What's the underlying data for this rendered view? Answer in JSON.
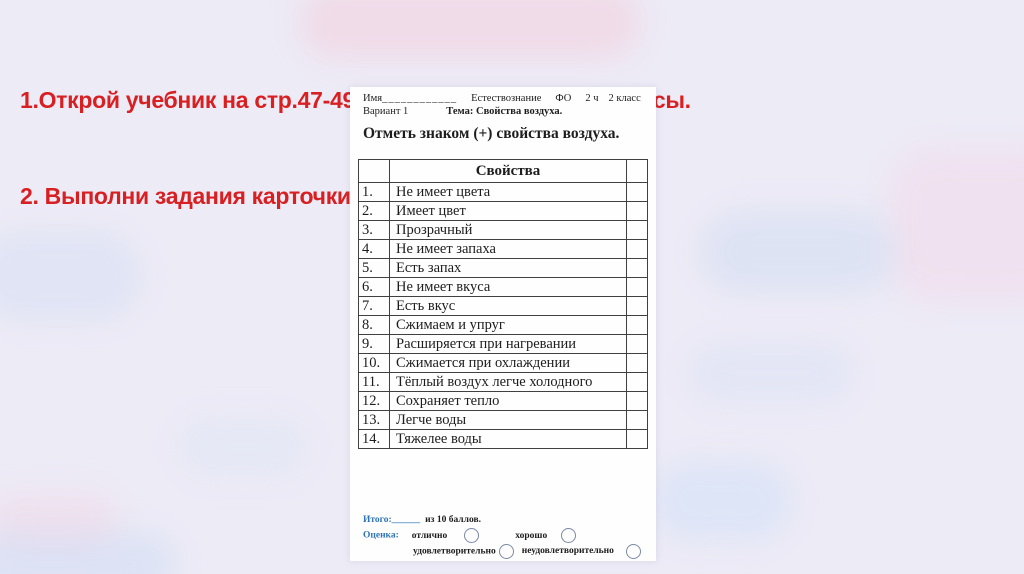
{
  "colors": {
    "background": "#edebf6",
    "title_red": "#d81f22",
    "label_blue": "#2e74b5",
    "circle_outline": "#7b89a5",
    "table_border": "#404040"
  },
  "title": {
    "line1": "1.Открой учебник на стр.47-49 прочитай ответь на вопросы.",
    "line2": "2. Выполни задания карточки. Пришли фото учителю"
  },
  "worksheet": {
    "header": {
      "name_label": "Имя",
      "name_blank": "____________",
      "subject": "Естествознание",
      "assessment": "ФО",
      "hours": "2 ч",
      "grade": "2 класс",
      "variant": "Вариант 1",
      "topic": "Тема: Свойства воздуха."
    },
    "instruction": "Отметь знаком (+) свойства  воздуха.",
    "table": {
      "header": "Свойства",
      "rows": [
        {
          "num": "1.",
          "text": "Не имеет цвета"
        },
        {
          "num": "2.",
          "text": "Имеет цвет"
        },
        {
          "num": "3.",
          "text": "Прозрачный"
        },
        {
          "num": "4.",
          "text": "Не имеет запаха"
        },
        {
          "num": "5.",
          "text": "Есть запах"
        },
        {
          "num": "6.",
          "text": "Не имеет вкуса"
        },
        {
          "num": "7.",
          "text": "Есть вкус"
        },
        {
          "num": "8.",
          "text": "Сжимаем и упруг"
        },
        {
          "num": "9.",
          "text": "Расширяется при нагревании"
        },
        {
          "num": "10.",
          "text": "Сжимается при охлаждении"
        },
        {
          "num": "11.",
          "text": "Тёплый воздух легче холодного"
        },
        {
          "num": "12.",
          "text": "Сохраняет тепло"
        },
        {
          "num": "13.",
          "text": "Легче воды"
        },
        {
          "num": "14.",
          "text": "Тяжелее воды"
        }
      ]
    },
    "footer": {
      "total_label": "Итого:",
      "total_blank": "______",
      "total_suffix": "из 10 баллов.",
      "grade_label": "Оценка:",
      "options": [
        "отлично",
        "хорошо",
        "удовлетворительно",
        "неудовлетворительно"
      ]
    }
  }
}
